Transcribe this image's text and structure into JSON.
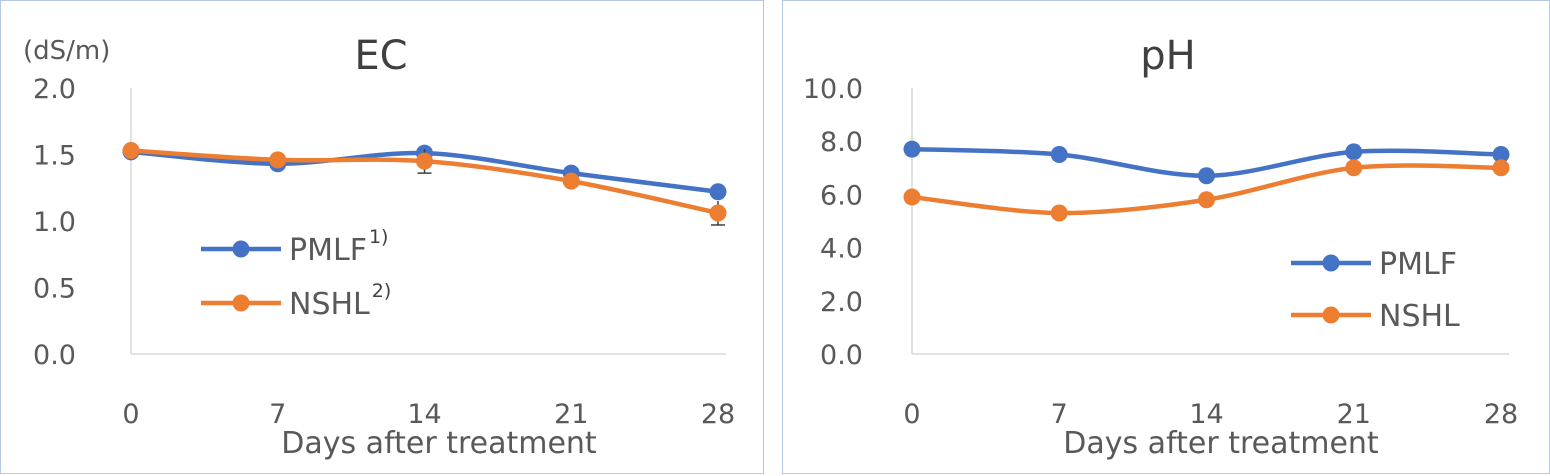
{
  "chart_data": [
    {
      "type": "line",
      "title": "EC",
      "unit_label": "(dS/m)",
      "xlabel": "Days  after treatment",
      "categories": [
        "0",
        "7",
        "14",
        "21",
        "28"
      ],
      "ylim": [
        0,
        2.0
      ],
      "yticks": [
        "0.0",
        "0.5",
        "1.0",
        "1.5",
        "2.0"
      ],
      "grid": false,
      "legend_position": "center-left",
      "series": [
        {
          "name": "PMLF",
          "note": "1)",
          "color": "#4472c4",
          "values": [
            1.52,
            1.43,
            1.51,
            1.36,
            1.22
          ],
          "error": [
            0,
            0,
            0,
            0,
            0
          ]
        },
        {
          "name": "NSHL",
          "note": "2)",
          "color": "#ed7d31",
          "values": [
            1.53,
            1.46,
            1.45,
            1.3,
            1.06
          ],
          "error": [
            0,
            0,
            0.09,
            0,
            0.09
          ]
        }
      ]
    },
    {
      "type": "line",
      "title": "pH",
      "xlabel": "Days  after treatment",
      "categories": [
        "0",
        "7",
        "14",
        "21",
        "28"
      ],
      "ylim": [
        0,
        10.0
      ],
      "yticks": [
        "0.0",
        "2.0",
        "4.0",
        "6.0",
        "8.0",
        "10.0"
      ],
      "grid": false,
      "legend_position": "bottom-right",
      "series": [
        {
          "name": "PMLF",
          "color": "#4472c4",
          "values": [
            7.7,
            7.5,
            6.7,
            7.6,
            7.5
          ]
        },
        {
          "name": "NSHL",
          "color": "#ed7d31",
          "values": [
            5.9,
            5.3,
            5.8,
            7.0,
            7.0
          ]
        }
      ]
    }
  ]
}
